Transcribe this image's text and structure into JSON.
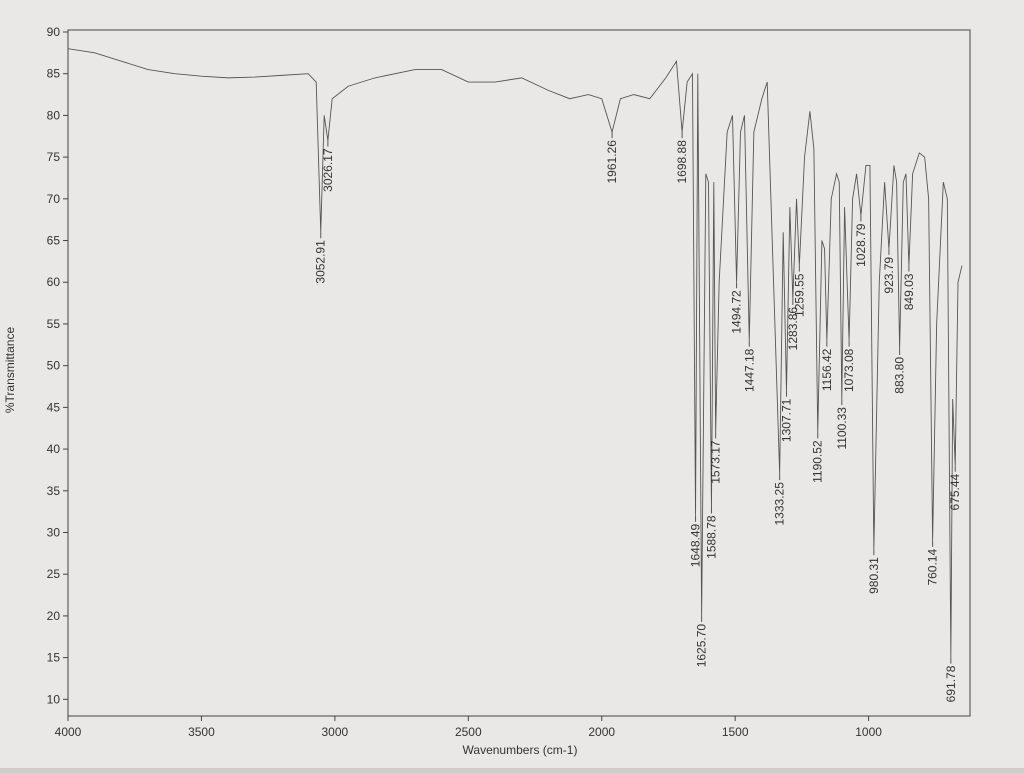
{
  "chart_data": {
    "type": "line",
    "x_label": "Wavenumbers (cm-1)",
    "y_label": "%Transmittance",
    "xlim": [
      4000,
      650
    ],
    "ylim": [
      8,
      90
    ],
    "xticks": [
      4000,
      3500,
      3000,
      2500,
      2000,
      1500,
      1000
    ],
    "yticks": [
      10,
      15,
      20,
      25,
      30,
      35,
      40,
      45,
      50,
      55,
      60,
      65,
      70,
      75,
      80,
      85,
      90
    ],
    "color": "#555555",
    "x": [
      4000,
      3900,
      3800,
      3700,
      3600,
      3500,
      3400,
      3300,
      3200,
      3100,
      3070,
      3052.91,
      3040,
      3026.17,
      3010,
      2950,
      2850,
      2700,
      2600,
      2500,
      2400,
      2300,
      2200,
      2120,
      2050,
      2000,
      1961.26,
      1930,
      1880,
      1820,
      1760,
      1720,
      1698.88,
      1680,
      1660,
      1648.49,
      1640,
      1625.7,
      1610,
      1600,
      1588.78,
      1580,
      1573.17,
      1560,
      1530,
      1510,
      1494.72,
      1480,
      1465,
      1447.18,
      1430,
      1400,
      1380,
      1333.25,
      1320,
      1307.71,
      1295,
      1283.86,
      1270,
      1259.55,
      1240,
      1220,
      1205,
      1190.52,
      1175,
      1165,
      1156.42,
      1140,
      1120,
      1110,
      1100.33,
      1090,
      1073.08,
      1060,
      1045,
      1028.79,
      1010,
      995,
      980.31,
      960,
      940,
      923.79,
      905,
      895,
      883.8,
      870,
      860,
      849.03,
      835,
      810,
      790,
      775,
      760.14,
      745,
      720,
      705,
      691.78,
      685,
      675.44,
      665,
      650
    ],
    "values": [
      88,
      87.5,
      86.5,
      85.5,
      85,
      84.7,
      84.5,
      84.6,
      84.8,
      85,
      84,
      66,
      80,
      77,
      82,
      83.5,
      84.5,
      85.5,
      85.5,
      84,
      84,
      84.5,
      83,
      82,
      82.5,
      82,
      78,
      82,
      82.5,
      82,
      84.5,
      86.5,
      78,
      84,
      85,
      32,
      85,
      20,
      73,
      72,
      33,
      72,
      42,
      60,
      78,
      80,
      60,
      78,
      80,
      53,
      78,
      82,
      84,
      37,
      66,
      47,
      69,
      58,
      70,
      62,
      75,
      80.5,
      76,
      42,
      65,
      64,
      53,
      70,
      73,
      72,
      46,
      69,
      53,
      70,
      73,
      68,
      74,
      74,
      28,
      60,
      72,
      64,
      74,
      72,
      52,
      72,
      73,
      62,
      73,
      75.5,
      75,
      70,
      29,
      55,
      72,
      70,
      15,
      46,
      38,
      60,
      62
    ],
    "annotations": [
      {
        "x": 3052.91,
        "y": 66,
        "text": "3052.91"
      },
      {
        "x": 3026.17,
        "y": 77,
        "text": "3026.17"
      },
      {
        "x": 1961.26,
        "y": 78,
        "text": "1961.26"
      },
      {
        "x": 1698.88,
        "y": 78,
        "text": "1698.88"
      },
      {
        "x": 1648.49,
        "y": 32,
        "text": "1648.49"
      },
      {
        "x": 1625.7,
        "y": 20,
        "text": "1625.70"
      },
      {
        "x": 1588.78,
        "y": 33,
        "text": "1588.78"
      },
      {
        "x": 1573.17,
        "y": 42,
        "text": "1573.17"
      },
      {
        "x": 1494.72,
        "y": 60,
        "text": "1494.72"
      },
      {
        "x": 1447.18,
        "y": 53,
        "text": "1447.18"
      },
      {
        "x": 1333.25,
        "y": 37,
        "text": "1333.25"
      },
      {
        "x": 1307.71,
        "y": 47,
        "text": "1307.71"
      },
      {
        "x": 1283.86,
        "y": 58,
        "text": "1283.86"
      },
      {
        "x": 1259.55,
        "y": 62,
        "text": "1259.55"
      },
      {
        "x": 1190.52,
        "y": 42,
        "text": "1190.52"
      },
      {
        "x": 1156.42,
        "y": 53,
        "text": "1156.42"
      },
      {
        "x": 1100.33,
        "y": 46,
        "text": "1100.33"
      },
      {
        "x": 1073.08,
        "y": 53,
        "text": "1073.08"
      },
      {
        "x": 1028.79,
        "y": 68,
        "text": "1028.79"
      },
      {
        "x": 980.31,
        "y": 28,
        "text": "980.31"
      },
      {
        "x": 923.79,
        "y": 64,
        "text": "923.79"
      },
      {
        "x": 883.8,
        "y": 52,
        "text": "883.80"
      },
      {
        "x": 849.03,
        "y": 62,
        "text": "849.03"
      },
      {
        "x": 760.14,
        "y": 29,
        "text": "760.14"
      },
      {
        "x": 691.78,
        "y": 15,
        "text": "691.78"
      },
      {
        "x": 675.44,
        "y": 38,
        "text": "675.44"
      }
    ]
  }
}
